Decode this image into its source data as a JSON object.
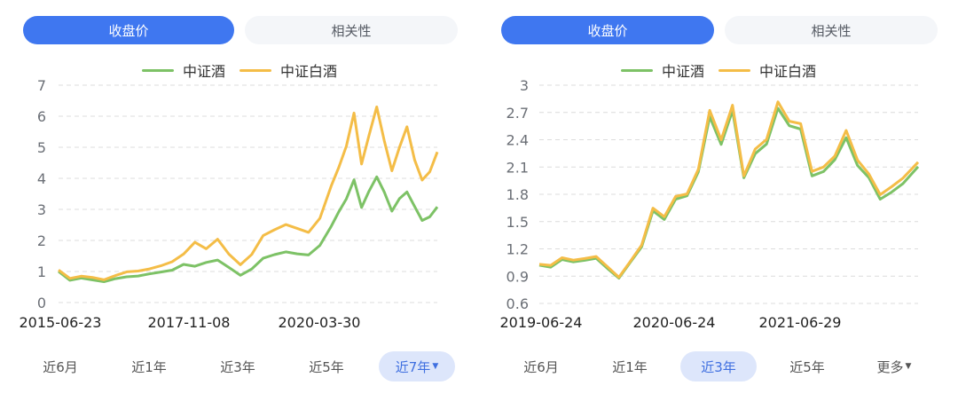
{
  "colors": {
    "accent": "#3f77f0",
    "tab_inactive_bg": "#f4f6f9",
    "series_green": "#7dc266",
    "series_yellow": "#f4bd47",
    "range_selected_bg": "#dde6fb",
    "range_selected_text": "#3f6fe0",
    "grid": "#dcdcdc"
  },
  "panels": [
    {
      "tabs": [
        {
          "label": "收盘价",
          "active": true
        },
        {
          "label": "相关性",
          "active": false
        }
      ],
      "legend": [
        {
          "label": "中证酒",
          "color": "#7dc266"
        },
        {
          "label": "中证白酒",
          "color": "#f4bd47"
        }
      ],
      "ranges": [
        {
          "label": "近6月",
          "selected": false
        },
        {
          "label": "近1年",
          "selected": false
        },
        {
          "label": "近3年",
          "selected": false
        },
        {
          "label": "近5年",
          "selected": false
        },
        {
          "label": "近7年",
          "selected": true,
          "dropdown": true
        }
      ]
    },
    {
      "tabs": [
        {
          "label": "收盘价",
          "active": true
        },
        {
          "label": "相关性",
          "active": false
        }
      ],
      "legend": [
        {
          "label": "中证酒",
          "color": "#7dc266"
        },
        {
          "label": "中证白酒",
          "color": "#f4bd47"
        }
      ],
      "ranges": [
        {
          "label": "近6月",
          "selected": false
        },
        {
          "label": "近1年",
          "selected": false
        },
        {
          "label": "近3年",
          "selected": true
        },
        {
          "label": "近5年",
          "selected": false
        },
        {
          "label": "更多",
          "selected": false,
          "dropdown": true
        }
      ]
    }
  ],
  "chart_data": [
    {
      "type": "line",
      "title": "收盘价 (近7年)",
      "xlabel": "",
      "ylabel": "",
      "ylim": [
        0,
        7
      ],
      "yticks": [
        0,
        1,
        2,
        3,
        4,
        5,
        6,
        7
      ],
      "xtick_labels": [
        "2015-06-23",
        "2017-11-08",
        "2020-03-30"
      ],
      "grid": true,
      "legend_position": "top",
      "x": [
        0,
        0.03,
        0.06,
        0.09,
        0.12,
        0.15,
        0.18,
        0.21,
        0.24,
        0.27,
        0.3,
        0.33,
        0.36,
        0.39,
        0.42,
        0.45,
        0.48,
        0.51,
        0.54,
        0.57,
        0.6,
        0.63,
        0.66,
        0.69,
        0.72,
        0.74,
        0.76,
        0.78,
        0.8,
        0.82,
        0.84,
        0.86,
        0.88,
        0.9,
        0.92,
        0.94,
        0.96,
        0.98,
        1.0
      ],
      "series": [
        {
          "name": "中证酒",
          "color": "#7dc266",
          "values": [
            1.0,
            0.72,
            0.78,
            0.74,
            0.66,
            0.78,
            0.82,
            0.86,
            0.92,
            0.98,
            1.05,
            1.22,
            1.18,
            1.28,
            1.38,
            1.12,
            0.88,
            1.08,
            1.42,
            1.55,
            1.62,
            1.58,
            1.52,
            1.85,
            2.45,
            2.92,
            3.35,
            3.95,
            3.05,
            3.6,
            4.05,
            3.55,
            2.95,
            3.35,
            3.55,
            3.1,
            2.65,
            2.75,
            3.08
          ]
        },
        {
          "name": "中证白酒",
          "color": "#f4bd47",
          "values": [
            1.05,
            0.78,
            0.84,
            0.82,
            0.72,
            0.88,
            0.98,
            1.02,
            1.08,
            1.18,
            1.32,
            1.55,
            1.95,
            1.72,
            2.05,
            1.55,
            1.22,
            1.55,
            2.15,
            2.35,
            2.5,
            2.4,
            2.25,
            2.72,
            3.75,
            4.35,
            5.05,
            6.1,
            4.45,
            5.4,
            6.3,
            5.2,
            4.25,
            5.0,
            5.65,
            4.6,
            3.95,
            4.2,
            4.85
          ]
        }
      ]
    },
    {
      "type": "line",
      "title": "收盘价 (近3年)",
      "xlabel": "",
      "ylabel": "",
      "ylim": [
        0.6,
        3.0
      ],
      "yticks": [
        0.6,
        0.9,
        1.2,
        1.5,
        1.8,
        2.1,
        2.4,
        2.7,
        3.0
      ],
      "xtick_labels": [
        "2019-06-24",
        "2020-06-24",
        "2021-06-29"
      ],
      "grid": true,
      "legend_position": "top",
      "x": [
        0,
        0.03,
        0.06,
        0.09,
        0.12,
        0.15,
        0.18,
        0.21,
        0.24,
        0.27,
        0.3,
        0.33,
        0.36,
        0.39,
        0.42,
        0.45,
        0.48,
        0.51,
        0.54,
        0.57,
        0.6,
        0.63,
        0.66,
        0.69,
        0.72,
        0.75,
        0.78,
        0.81,
        0.84,
        0.87,
        0.9,
        0.93,
        0.96,
        1.0
      ],
      "series": [
        {
          "name": "中证酒",
          "color": "#7dc266",
          "values": [
            1.02,
            1.0,
            1.08,
            1.06,
            1.07,
            1.1,
            0.98,
            0.88,
            1.05,
            1.22,
            1.62,
            1.52,
            1.75,
            1.78,
            2.05,
            2.65,
            2.35,
            2.72,
            1.98,
            2.25,
            2.35,
            2.75,
            2.55,
            2.52,
            2.0,
            2.05,
            2.18,
            2.42,
            2.12,
            1.98,
            1.75,
            1.82,
            1.92,
            2.1
          ]
        },
        {
          "name": "中证白酒",
          "color": "#f4bd47",
          "values": [
            1.03,
            1.02,
            1.1,
            1.08,
            1.09,
            1.12,
            1.0,
            0.89,
            1.06,
            1.24,
            1.65,
            1.55,
            1.78,
            1.8,
            2.08,
            2.72,
            2.4,
            2.78,
            2.0,
            2.3,
            2.4,
            2.82,
            2.6,
            2.58,
            2.05,
            2.1,
            2.22,
            2.5,
            2.18,
            2.02,
            1.8,
            1.88,
            1.98,
            2.15
          ]
        }
      ]
    }
  ]
}
